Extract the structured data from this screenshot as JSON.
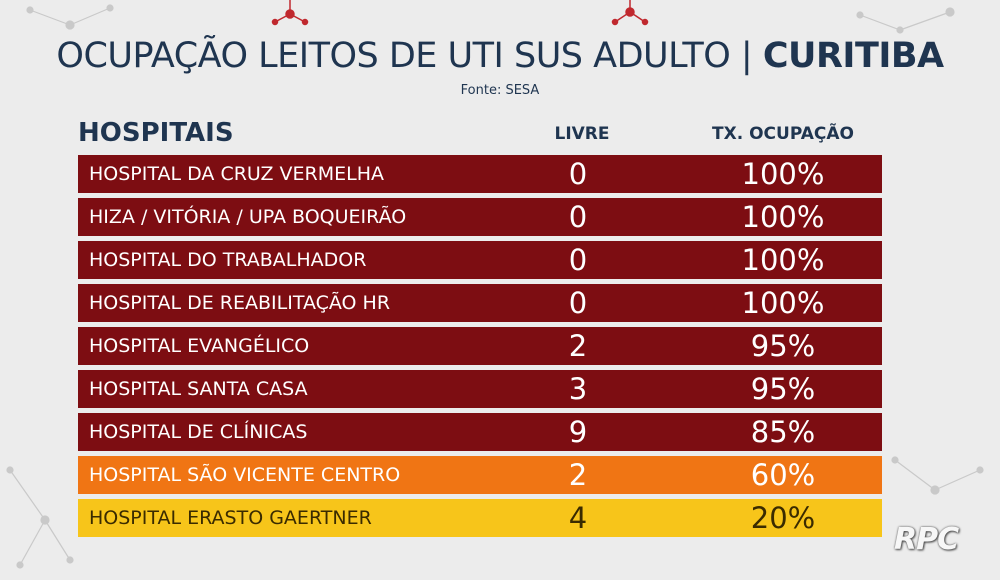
{
  "title": {
    "main": "OCUPAÇÃO LEITOS DE UTI SUS ADULTO",
    "separator": "|",
    "city": "CURITIBA"
  },
  "source": "Fonte: SESA",
  "table": {
    "headers": {
      "hospitals": "HOSPITAIS",
      "free": "LIVRE",
      "occupancy": "TX. OCUPAÇÃO"
    },
    "rows": [
      {
        "name": "HOSPITAL DA CRUZ VERMELHA",
        "free": "0",
        "occupancy": "100%",
        "color": "#7d0d12"
      },
      {
        "name": "HIZA / VITÓRIA / UPA BOQUEIRÃO",
        "free": "0",
        "occupancy": "100%",
        "color": "#7d0d12"
      },
      {
        "name": "HOSPITAL DO TRABALHADOR",
        "free": "0",
        "occupancy": "100%",
        "color": "#7d0d12"
      },
      {
        "name": "HOSPITAL DE REABILITAÇÃO HR",
        "free": "0",
        "occupancy": "100%",
        "color": "#7d0d12"
      },
      {
        "name": "HOSPITAL EVANGÉLICO",
        "free": "2",
        "occupancy": "95%",
        "color": "#7d0d12"
      },
      {
        "name": "HOSPITAL SANTA CASA",
        "free": "3",
        "occupancy": "95%",
        "color": "#7d0d12"
      },
      {
        "name": "HOSPITAL DE CLÍNICAS",
        "free": "9",
        "occupancy": "85%",
        "color": "#7d0d12"
      },
      {
        "name": "HOSPITAL SÃO VICENTE CENTRO",
        "free": "2",
        "occupancy": "60%",
        "color": "#f07514"
      },
      {
        "name": "HOSPITAL ERASTO GAERTNER",
        "free": "4",
        "occupancy": "20%",
        "color": "#f7c51a"
      }
    ]
  },
  "logo": "RPC"
}
